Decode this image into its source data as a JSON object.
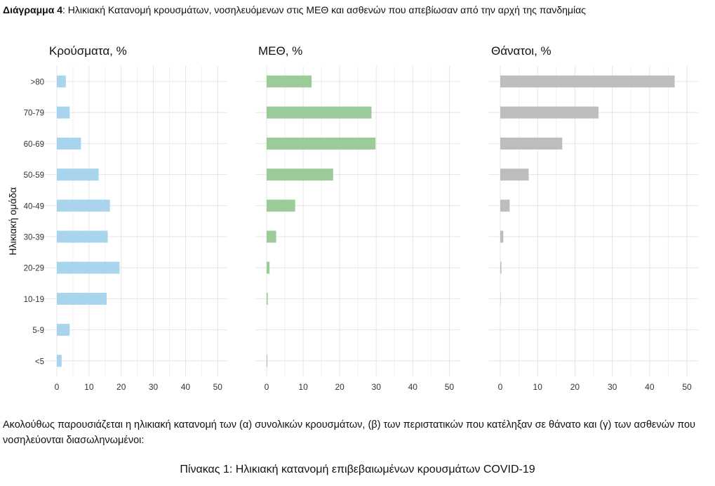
{
  "caption": {
    "label": "Διάγραμμα 4",
    "text": ": Ηλικιακή Κατανομή κρουσμάτων, νοσηλευόμενων στις ΜΕΘ και ασθενών που απεβίωσαν από την αρχή της πανδημίας"
  },
  "chart_data": {
    "type": "bar",
    "orientation": "horizontal",
    "ylabel": "Ηλικιακή ομάδα",
    "categories": [
      ">80",
      "70-79",
      "60-69",
      "50-59",
      "40-49",
      "30-39",
      "20-29",
      "10-19",
      "5-9",
      "<5"
    ],
    "xlim": [
      0,
      53
    ],
    "xticks": [
      0,
      10,
      20,
      30,
      40,
      50
    ],
    "grid": true,
    "panels": [
      {
        "title": "Κρούσματα, %",
        "color": "#a8d4ee",
        "values": [
          2.8,
          4.0,
          7.5,
          13.0,
          16.5,
          15.8,
          19.5,
          15.5,
          4.0,
          1.5
        ]
      },
      {
        "title": "ΜΕΘ, %",
        "color": "#9acb98",
        "values": [
          12.3,
          28.7,
          29.8,
          18.2,
          7.8,
          2.6,
          0.8,
          0.3,
          0.0,
          0.2
        ]
      },
      {
        "title": "Θάνατοι, %",
        "color": "#bdbdbd",
        "values": [
          46.7,
          26.3,
          16.6,
          7.6,
          2.5,
          0.8,
          0.3,
          0.1,
          0.0,
          0.0
        ]
      }
    ]
  },
  "paragraph": "Ακολούθως παρουσιάζεται η ηλικιακή κατανομή των (α) συνολικών κρουσμάτων, (β) των περιστατικών που κατέληξαν σε θάνατο και (γ) των ασθενών που νοσηλεύονται διασωληνωμένοι:",
  "table_title": "Πίνακας 1: Ηλικιακή κατανομή επιβεβαιωμένων κρουσμάτων COVID-19"
}
